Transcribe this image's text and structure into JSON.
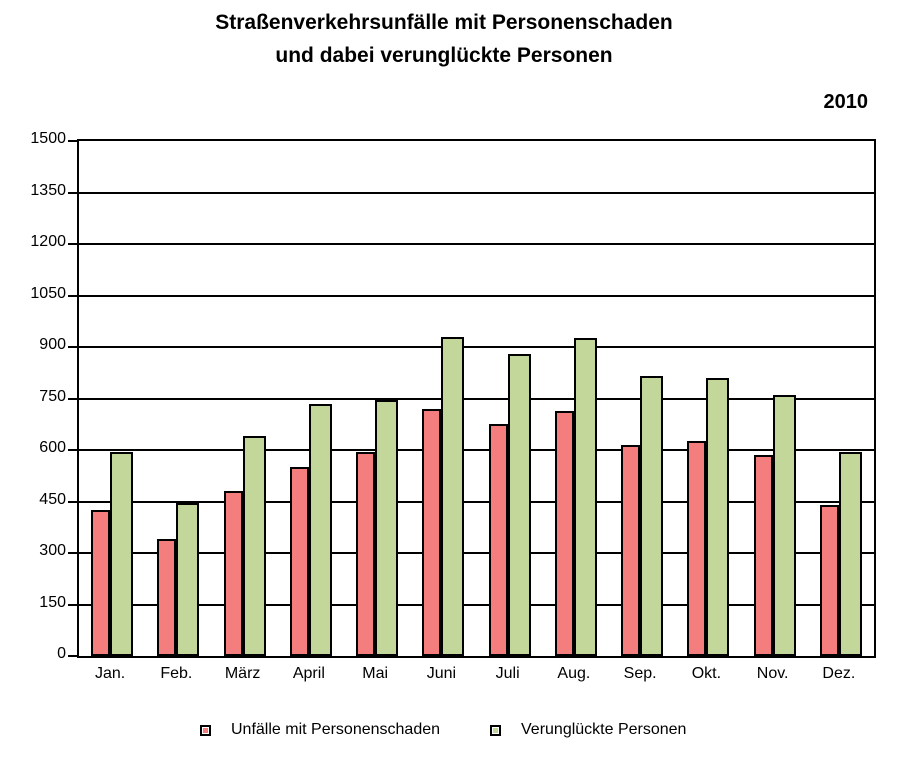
{
  "title": {
    "line1": "Straßenverkehrsunfälle mit Personenschaden",
    "line2": "und dabei verunglückte Personen"
  },
  "year_label": "2010",
  "chart_data": {
    "type": "bar",
    "title": "Straßenverkehrsunfälle mit Personenschaden und dabei verunglückte Personen",
    "subtitle": "2010",
    "categories": [
      "Jan.",
      "Feb.",
      "März",
      "April",
      "Mai",
      "Juni",
      "Juli",
      "Aug.",
      "Sep.",
      "Okt.",
      "Nov.",
      "Dez."
    ],
    "series": [
      {
        "name": "Unfälle mit Personenschaden",
        "color": "#F47E7E",
        "values": [
          425,
          340,
          480,
          550,
          595,
          720,
          675,
          715,
          615,
          625,
          585,
          440
        ]
      },
      {
        "name": "Verunglückte Personen",
        "color": "#C4D79B",
        "values": [
          595,
          445,
          640,
          735,
          745,
          930,
          880,
          925,
          815,
          810,
          760,
          595
        ]
      }
    ],
    "xlabel": "",
    "ylabel": "",
    "ylim": [
      0,
      1500
    ],
    "yticks": [
      0,
      150,
      300,
      450,
      600,
      750,
      900,
      1050,
      1200,
      1350,
      1500
    ],
    "grid": "horizontal",
    "legend_position": "bottom",
    "bar_outline_color": "#000000"
  },
  "colors": {
    "background": "#FFFFFF",
    "axis": "#000000",
    "text": "#000000"
  }
}
